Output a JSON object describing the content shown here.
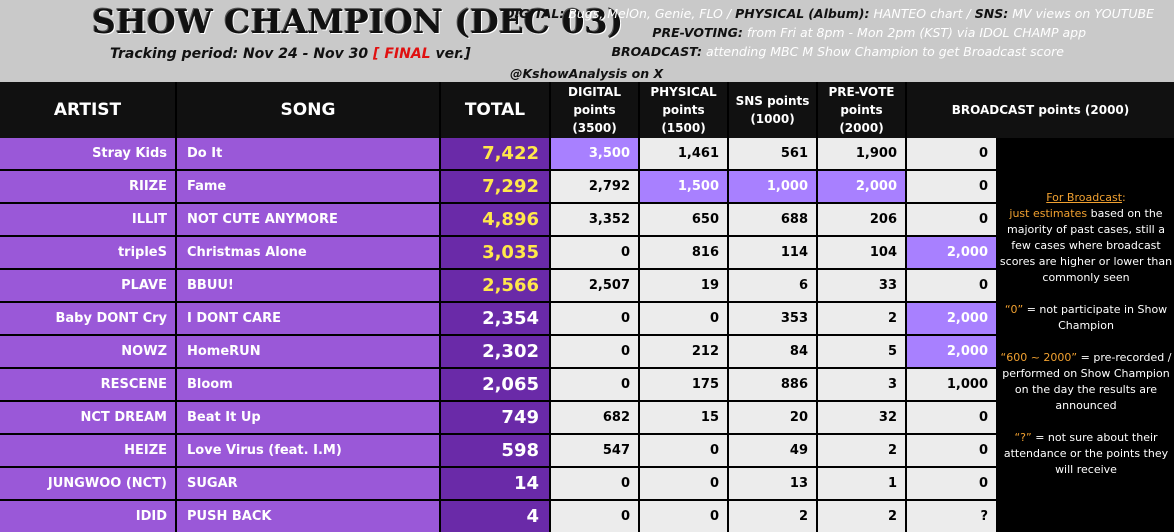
{
  "header": {
    "title": "SHOW CHAMPION (DEC 03)",
    "tracking_label": "Tracking period: Nov 24 - Nov 30",
    "bracket_open": "[",
    "final_word": "FINAL",
    "final_suffix": "ver.]",
    "credit": "@KshowAnalysis on X",
    "info_lines": [
      {
        "key": "DIGITAL:",
        "value": "Bugs, MelOn, Genie, FLO /",
        "key2": "PHYSICAL",
        "value2": "(Album):",
        "value3": "HANTEO chart /",
        "key3": "SNS:",
        "value4": "MV views on YOUTUBE"
      },
      {
        "key": "PRE-VOTING:",
        "value": "from Fri at 8pm - Mon 2pm (KST) via IDOL CHAMP app"
      },
      {
        "key": "BROADCAST:",
        "value": "attending MBC M Show Champion to get Broadcast score"
      }
    ]
  },
  "columns": {
    "artist": "ARTIST",
    "song": "SONG",
    "total": "TOTAL",
    "digital": [
      "DIGITAL",
      "points",
      "(3500)"
    ],
    "physical": [
      "PHYSICAL",
      "points",
      "(1500)"
    ],
    "sns": [
      "SNS points",
      "(1000)"
    ],
    "prevote": [
      "PRE-VOTE",
      "points",
      "(2000)"
    ],
    "broadcast": "BROADCAST points (2000)"
  },
  "rows": [
    {
      "artist": "Stray Kids",
      "song": "Do It",
      "total": "7,422",
      "digital": "3,500",
      "physical": "1,461",
      "sns": "561",
      "prevote": "1,900",
      "broadcast": "0"
    },
    {
      "artist": "RIIZE",
      "song": "Fame",
      "total": "7,292",
      "digital": "2,792",
      "physical": "1,500",
      "sns": "1,000",
      "prevote": "2,000",
      "broadcast": "0"
    },
    {
      "artist": "ILLIT",
      "song": "NOT CUTE ANYMORE",
      "total": "4,896",
      "digital": "3,352",
      "physical": "650",
      "sns": "688",
      "prevote": "206",
      "broadcast": "0"
    },
    {
      "artist": "tripleS",
      "song": "Christmas Alone",
      "total": "3,035",
      "digital": "0",
      "physical": "816",
      "sns": "114",
      "prevote": "104",
      "broadcast": "2,000"
    },
    {
      "artist": "PLAVE",
      "song": "BBUU!",
      "total": "2,566",
      "digital": "2,507",
      "physical": "19",
      "sns": "6",
      "prevote": "33",
      "broadcast": "0"
    },
    {
      "artist": "Baby DONT Cry",
      "song": "I DONT CARE",
      "total": "2,354",
      "digital": "0",
      "physical": "0",
      "sns": "353",
      "prevote": "2",
      "broadcast": "2,000"
    },
    {
      "artist": "NOWZ",
      "song": "HomeRUN",
      "total": "2,302",
      "digital": "0",
      "physical": "212",
      "sns": "84",
      "prevote": "5",
      "broadcast": "2,000"
    },
    {
      "artist": "RESCENE",
      "song": "Bloom",
      "total": "2,065",
      "digital": "0",
      "physical": "175",
      "sns": "886",
      "prevote": "3",
      "broadcast": "1,000"
    },
    {
      "artist": "NCT DREAM",
      "song": "Beat It Up",
      "total": "749",
      "digital": "682",
      "physical": "15",
      "sns": "20",
      "prevote": "32",
      "broadcast": "0"
    },
    {
      "artist": "HEIZE",
      "song": "Love Virus (feat. I.M)",
      "total": "598",
      "digital": "547",
      "physical": "0",
      "sns": "49",
      "prevote": "2",
      "broadcast": "0"
    },
    {
      "artist": "JUNGWOO (NCT)",
      "song": "SUGAR",
      "total": "14",
      "digital": "0",
      "physical": "0",
      "sns": "13",
      "prevote": "1",
      "broadcast": "0"
    },
    {
      "artist": "IDID",
      "song": "PUSH BACK",
      "total": "4",
      "digital": "0",
      "physical": "0",
      "sns": "2",
      "prevote": "2",
      "broadcast": "?"
    }
  ],
  "note": {
    "heading": "For Broadcast",
    "heading_colon": ":",
    "estimate_lead": "just estimates",
    "estimate_rest": "based on the majority of past cases, still a few cases where broadcast scores are higher or lower than commonly seen",
    "zero_key": "“0”",
    "zero_text": "= not participate in Show Champion",
    "range_key": "“600 ~ 2000”",
    "range_text": "= pre-recorded / performed on Show Champion on the day the results are announced",
    "q_key": "“?”",
    "q_text": "= not sure about their attendance or the points they will receive"
  },
  "colors": {
    "header_bg": "#c9c9c9",
    "purple_cell": "#9a58d8",
    "total_cell": "#6a2aa8",
    "highlight": "#a880ff",
    "gold_text": "#ffe84a",
    "orange_note": "#f0a030",
    "final_red": "#e01010"
  },
  "highlights": {
    "gold_totals_count": 5,
    "max_cells": [
      {
        "row": 0,
        "col": "digital"
      },
      {
        "row": 1,
        "col": "physical"
      },
      {
        "row": 1,
        "col": "sns"
      },
      {
        "row": 1,
        "col": "prevote"
      },
      {
        "row": 3,
        "col": "broadcast"
      },
      {
        "row": 5,
        "col": "broadcast"
      },
      {
        "row": 6,
        "col": "broadcast"
      }
    ]
  }
}
